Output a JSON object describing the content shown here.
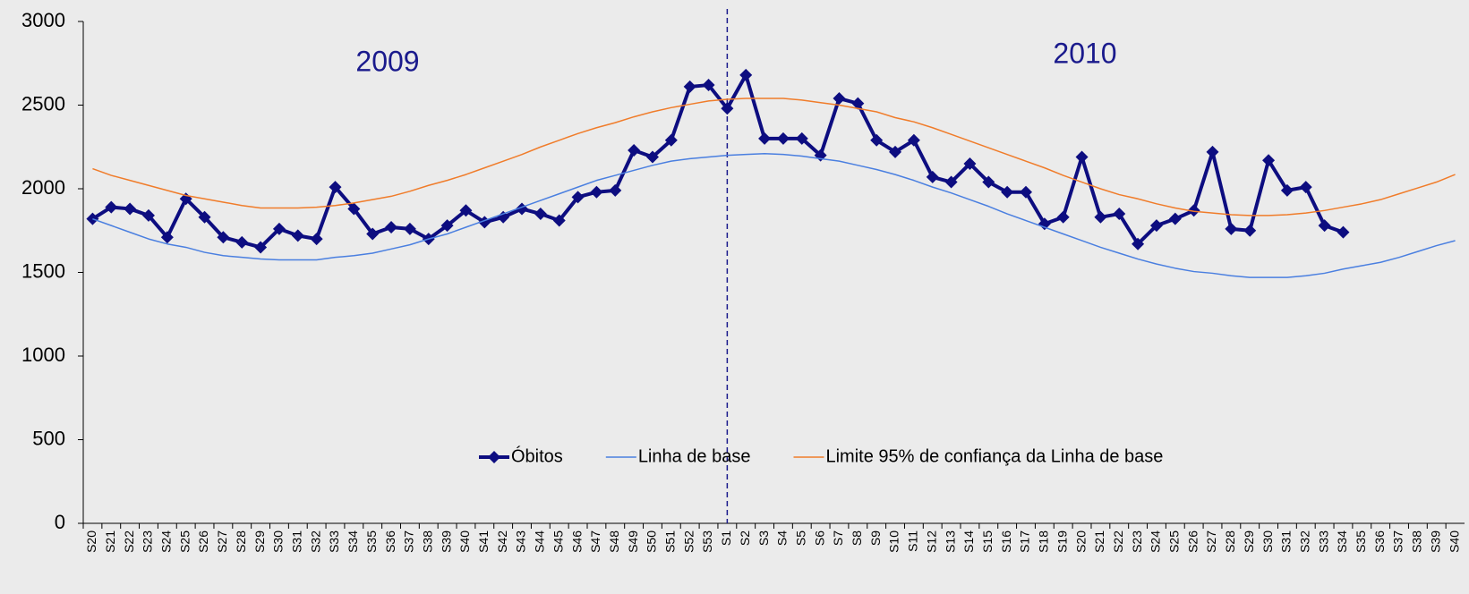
{
  "chart_data": {
    "type": "line",
    "categories": [
      "S20",
      "S21",
      "S22",
      "S23",
      "S24",
      "S25",
      "S26",
      "S27",
      "S28",
      "S29",
      "S30",
      "S31",
      "S32",
      "S33",
      "S34",
      "S35",
      "S36",
      "S37",
      "S38",
      "S39",
      "S40",
      "S41",
      "S42",
      "S43",
      "S44",
      "S45",
      "S46",
      "S47",
      "S48",
      "S49",
      "S50",
      "S51",
      "S52",
      "S53",
      "S1",
      "S2",
      "S3",
      "S4",
      "S5",
      "S6",
      "S7",
      "S8",
      "S9",
      "S10",
      "S11",
      "S12",
      "S13",
      "S14",
      "S15",
      "S16",
      "S17",
      "S18",
      "S19",
      "S20",
      "S21",
      "S22",
      "S23",
      "S24",
      "S25",
      "S26",
      "S27",
      "S28",
      "S29",
      "S30",
      "S31",
      "S32",
      "S33",
      "S34",
      "S35",
      "S36",
      "S37",
      "S38",
      "S39",
      "S40"
    ],
    "series": [
      {
        "name": "Óbitos",
        "color": "#0d0d80",
        "values": [
          1820,
          1890,
          1880,
          1840,
          1710,
          1940,
          1830,
          1710,
          1680,
          1650,
          1760,
          1720,
          1700,
          2010,
          1880,
          1730,
          1770,
          1760,
          1700,
          1780,
          1870,
          1800,
          1830,
          1880,
          1850,
          1810,
          1950,
          1980,
          1990,
          2230,
          2190,
          2290,
          2610,
          2620,
          2480,
          2680,
          2300,
          2300,
          2300,
          2200,
          2540,
          2510,
          2290,
          2220,
          2290,
          2070,
          2040,
          2150,
          2040,
          1980,
          1980,
          1790,
          1830,
          2190,
          1830,
          1850,
          1670,
          1780,
          1820,
          1870,
          2220,
          1760,
          1750,
          2170,
          1990,
          2010,
          1780,
          1740,
          null,
          null,
          null,
          null,
          null,
          null
        ]
      },
      {
        "name": "Linha de base",
        "color": "#4a7fe0",
        "values": [
          1820,
          1780,
          1740,
          1700,
          1670,
          1650,
          1620,
          1600,
          1590,
          1580,
          1575,
          1575,
          1575,
          1590,
          1600,
          1615,
          1640,
          1665,
          1700,
          1730,
          1770,
          1810,
          1850,
          1890,
          1930,
          1970,
          2010,
          2050,
          2080,
          2110,
          2140,
          2165,
          2180,
          2190,
          2200,
          2205,
          2210,
          2205,
          2195,
          2180,
          2165,
          2140,
          2115,
          2085,
          2050,
          2010,
          1975,
          1935,
          1895,
          1850,
          1810,
          1770,
          1730,
          1690,
          1650,
          1615,
          1580,
          1550,
          1525,
          1505,
          1495,
          1480,
          1470,
          1470,
          1470,
          1480,
          1495,
          1520,
          1540,
          1560,
          1590,
          1625,
          1660,
          1690
        ]
      },
      {
        "name": "Limite 95% de confiança da Linha de base",
        "color": "#f07c2a",
        "values": [
          2120,
          2080,
          2050,
          2020,
          1990,
          1960,
          1940,
          1920,
          1900,
          1885,
          1885,
          1885,
          1890,
          1900,
          1915,
          1935,
          1955,
          1985,
          2020,
          2050,
          2085,
          2125,
          2165,
          2205,
          2250,
          2290,
          2330,
          2365,
          2395,
          2430,
          2460,
          2485,
          2505,
          2525,
          2535,
          2540,
          2540,
          2540,
          2530,
          2515,
          2500,
          2480,
          2460,
          2425,
          2400,
          2365,
          2325,
          2285,
          2245,
          2205,
          2165,
          2125,
          2080,
          2040,
          2000,
          1965,
          1940,
          1910,
          1885,
          1865,
          1855,
          1845,
          1840,
          1840,
          1845,
          1855,
          1870,
          1890,
          1910,
          1935,
          1970,
          2005,
          2040,
          2085
        ]
      }
    ],
    "annotations": [
      "2009",
      "2010"
    ],
    "ylim": [
      0,
      3000
    ],
    "yticks": [
      0,
      500,
      1000,
      1500,
      2000,
      2500,
      3000
    ]
  }
}
